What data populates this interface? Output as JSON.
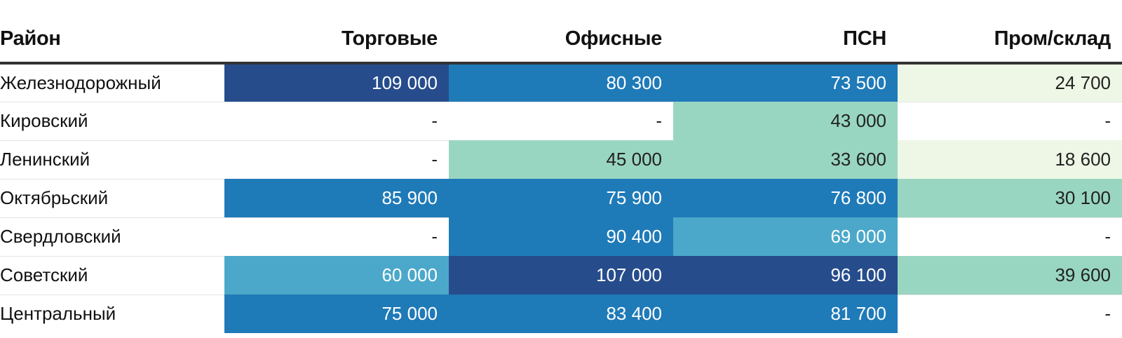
{
  "chart_data": {
    "type": "table",
    "columns": [
      "Район",
      "Торговые",
      "Офисные",
      "ПСН",
      "Пром/склад"
    ],
    "rows": [
      {
        "district": "Железнодорожный",
        "values": [
          "109 000",
          "80 300",
          "73 500",
          "24 700"
        ]
      },
      {
        "district": "Кировский",
        "values": [
          "-",
          "-",
          "43 000",
          "-"
        ]
      },
      {
        "district": "Ленинский",
        "values": [
          "-",
          "45 000",
          "33 600",
          "18 600"
        ]
      },
      {
        "district": "Октябрьский",
        "values": [
          "85 900",
          "75 900",
          "76 800",
          "30 100"
        ]
      },
      {
        "district": "Свердловский",
        "values": [
          "-",
          "90 400",
          "69 000",
          "-"
        ]
      },
      {
        "district": "Советский",
        "values": [
          "60 000",
          "107 000",
          "96 100",
          "39 600"
        ]
      },
      {
        "district": "Центральный",
        "values": [
          "75 000",
          "83 400",
          "81 700",
          "-"
        ]
      }
    ],
    "color_scale": [
      {
        "min": 0,
        "max": 30000,
        "color": "#eef7e6",
        "text": "#222222"
      },
      {
        "min": 30000,
        "max": 50000,
        "color": "#99d6c1",
        "text": "#222222"
      },
      {
        "min": 50000,
        "max": 70000,
        "color": "#4ba8ca",
        "text": "#ffffff"
      },
      {
        "min": 70000,
        "max": 95000,
        "color": "#1f7ab8",
        "text": "#ffffff"
      },
      {
        "min": 95000,
        "max": 1000000,
        "color": "#264c8c",
        "text": "#ffffff"
      }
    ]
  }
}
